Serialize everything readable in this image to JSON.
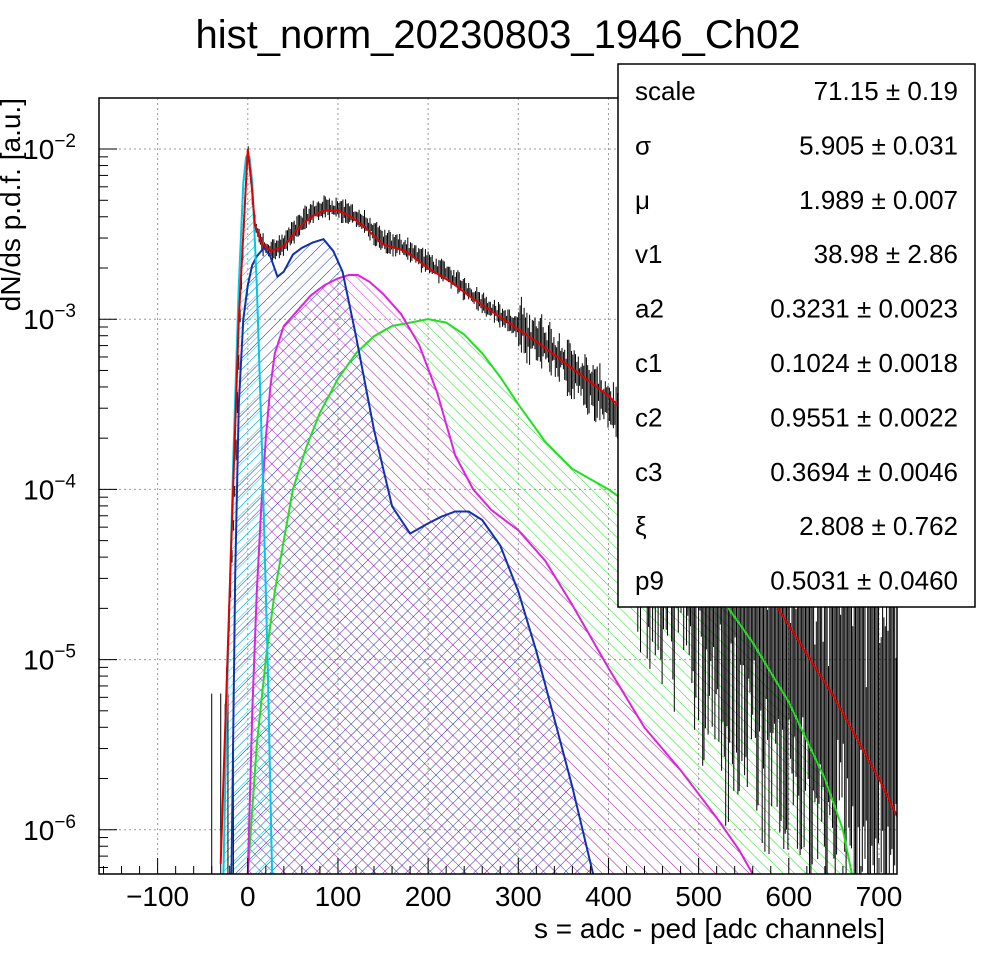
{
  "chart_data": {
    "type": "line",
    "title": "hist_norm_20230803_1946_Ch02",
    "xlabel": "s = adc - ped [adc channels]",
    "ylabel": "dN/ds p.d.f. [a.u.]",
    "xlim": [
      -165,
      720
    ],
    "ylim_log10": [
      -6.26,
      -1.7
    ],
    "yscale": "log",
    "grid": true,
    "x_ticks": [
      -100,
      0,
      100,
      200,
      300,
      400,
      500,
      600,
      700
    ],
    "x_tick_labels": [
      "−100",
      "0",
      "100",
      "200",
      "300",
      "400",
      "500",
      "600",
      "700"
    ],
    "y_ticks_exp": [
      -2,
      -3,
      -4,
      -5,
      -6
    ],
    "y_tick_base": "10",
    "y_tick_exponents": [
      "−2",
      "−3",
      "−4",
      "−5",
      "−6"
    ],
    "colors": {
      "data": "#000000",
      "total": "#e00000",
      "comp1": "#00c8e6",
      "comp2": "#1030b0",
      "comp3": "#e020e0",
      "comp4": "#20e020"
    },
    "series": [
      {
        "key": "total",
        "color": "#e00000",
        "x": [
          -30,
          -20,
          -10,
          -4,
          0,
          4,
          8,
          15,
          25,
          40,
          55,
          70,
          85,
          100,
          115,
          130,
          150,
          175,
          200,
          225,
          250,
          275,
          300,
          325,
          350,
          375,
          400,
          450,
          500,
          550,
          600,
          650,
          700,
          720
        ],
        "log10y": [
          -6.2,
          -4.6,
          -3.0,
          -2.4,
          -2.0,
          -2.2,
          -2.45,
          -2.55,
          -2.6,
          -2.57,
          -2.47,
          -2.4,
          -2.36,
          -2.36,
          -2.4,
          -2.46,
          -2.56,
          -2.6,
          -2.7,
          -2.78,
          -2.88,
          -2.97,
          -3.06,
          -3.15,
          -3.25,
          -3.35,
          -3.45,
          -3.72,
          -4.03,
          -4.38,
          -4.8,
          -5.22,
          -5.7,
          -5.92
        ]
      },
      {
        "key": "data",
        "color": "#000000",
        "x": [
          -25,
          -15,
          -8,
          -3,
          0,
          4,
          8,
          15,
          25,
          40,
          55,
          70,
          85,
          100,
          115,
          130,
          150,
          175,
          200,
          225,
          250,
          275,
          300,
          325,
          350,
          375,
          400,
          430,
          460,
          500,
          550,
          600,
          650,
          700
        ],
        "log10y": [
          -5.3,
          -4.1,
          -2.9,
          -2.3,
          -2.0,
          -2.2,
          -2.45,
          -2.55,
          -2.6,
          -2.56,
          -2.45,
          -2.38,
          -2.34,
          -2.35,
          -2.38,
          -2.44,
          -2.54,
          -2.58,
          -2.67,
          -2.75,
          -2.86,
          -2.96,
          -3.05,
          -3.14,
          -3.25,
          -3.38,
          -3.5,
          -3.7,
          -4.0,
          -4.3,
          -4.7,
          -5.0,
          -5.2,
          -5.4
        ]
      },
      {
        "key": "comp1",
        "color": "#00c8e6",
        "x": [
          -27,
          -22,
          -16,
          -10,
          -5,
          -2,
          0,
          2,
          5,
          10,
          16,
          22,
          27
        ],
        "log10y": [
          -6.26,
          -5.0,
          -3.8,
          -2.8,
          -2.2,
          -2.05,
          -2.03,
          -2.05,
          -2.2,
          -2.8,
          -3.8,
          -5.0,
          -6.26
        ]
      },
      {
        "key": "comp2",
        "color": "#1030b0",
        "x": [
          -18,
          -14,
          -10,
          -5,
          0,
          5,
          10,
          18,
          25,
          33,
          40,
          50,
          60,
          72,
          84,
          95,
          105,
          120,
          140,
          160,
          180,
          200,
          215,
          230,
          245,
          260,
          280,
          300,
          320,
          340,
          360,
          383
        ],
        "log10y": [
          -6.26,
          -4.5,
          -3.5,
          -3.0,
          -2.8,
          -2.68,
          -2.63,
          -2.58,
          -2.63,
          -2.75,
          -2.72,
          -2.62,
          -2.58,
          -2.55,
          -2.53,
          -2.6,
          -2.72,
          -3.1,
          -3.65,
          -4.1,
          -4.26,
          -4.2,
          -4.16,
          -4.13,
          -4.13,
          -4.18,
          -4.33,
          -4.6,
          -4.95,
          -5.35,
          -5.75,
          -6.26
        ]
      },
      {
        "key": "comp3",
        "color": "#e020e0",
        "x": [
          0,
          5,
          10,
          15,
          20,
          25,
          30,
          40,
          55,
          70,
          85,
          100,
          112,
          122,
          135,
          150,
          170,
          190,
          210,
          230,
          250,
          270,
          300,
          330,
          360,
          400,
          440,
          480,
          520,
          545,
          560
        ],
        "log10y": [
          -6.26,
          -5.3,
          -4.6,
          -4.1,
          -3.7,
          -3.4,
          -3.2,
          -3.04,
          -2.95,
          -2.86,
          -2.8,
          -2.76,
          -2.74,
          -2.74,
          -2.78,
          -2.85,
          -2.97,
          -3.15,
          -3.43,
          -3.8,
          -4.0,
          -4.12,
          -4.24,
          -4.42,
          -4.68,
          -5.05,
          -5.4,
          -5.65,
          -5.93,
          -6.12,
          -6.26
        ]
      },
      {
        "key": "comp4",
        "color": "#20e020",
        "x": [
          0,
          10,
          20,
          30,
          40,
          50,
          65,
          80,
          100,
          120,
          140,
          160,
          180,
          200,
          220,
          240,
          260,
          280,
          300,
          330,
          360,
          400,
          440,
          480,
          520,
          560,
          600,
          640,
          660,
          670
        ],
        "log10y": [
          -6.26,
          -5.5,
          -5.0,
          -4.6,
          -4.3,
          -4.0,
          -3.75,
          -3.55,
          -3.35,
          -3.2,
          -3.1,
          -3.04,
          -3.02,
          -3.0,
          -3.02,
          -3.09,
          -3.2,
          -3.34,
          -3.5,
          -3.72,
          -3.88,
          -4.0,
          -4.15,
          -4.35,
          -4.6,
          -4.9,
          -5.25,
          -5.7,
          -6.0,
          -6.26
        ]
      }
    ]
  },
  "stats": [
    {
      "name": "scale",
      "value": "71.15",
      "err": "0.19"
    },
    {
      "name": "σ",
      "value": "5.905",
      "err": "0.031"
    },
    {
      "name": "μ",
      "value": "1.989",
      "err": "0.007"
    },
    {
      "name": "v1",
      "value": "38.98",
      "err": "2.86"
    },
    {
      "name": "a2",
      "value": "0.3231",
      "err": "0.0023"
    },
    {
      "name": "c1",
      "value": "0.1024",
      "err": "0.0018"
    },
    {
      "name": "c2",
      "value": "0.9551",
      "err": "0.0022"
    },
    {
      "name": "c3",
      "value": "0.3694",
      "err": "0.0046"
    },
    {
      "name": "ξ",
      "value": "2.808",
      "err": "0.762"
    },
    {
      "name": "p9",
      "value": "0.5031",
      "err": "0.0460"
    }
  ],
  "pm": "±"
}
